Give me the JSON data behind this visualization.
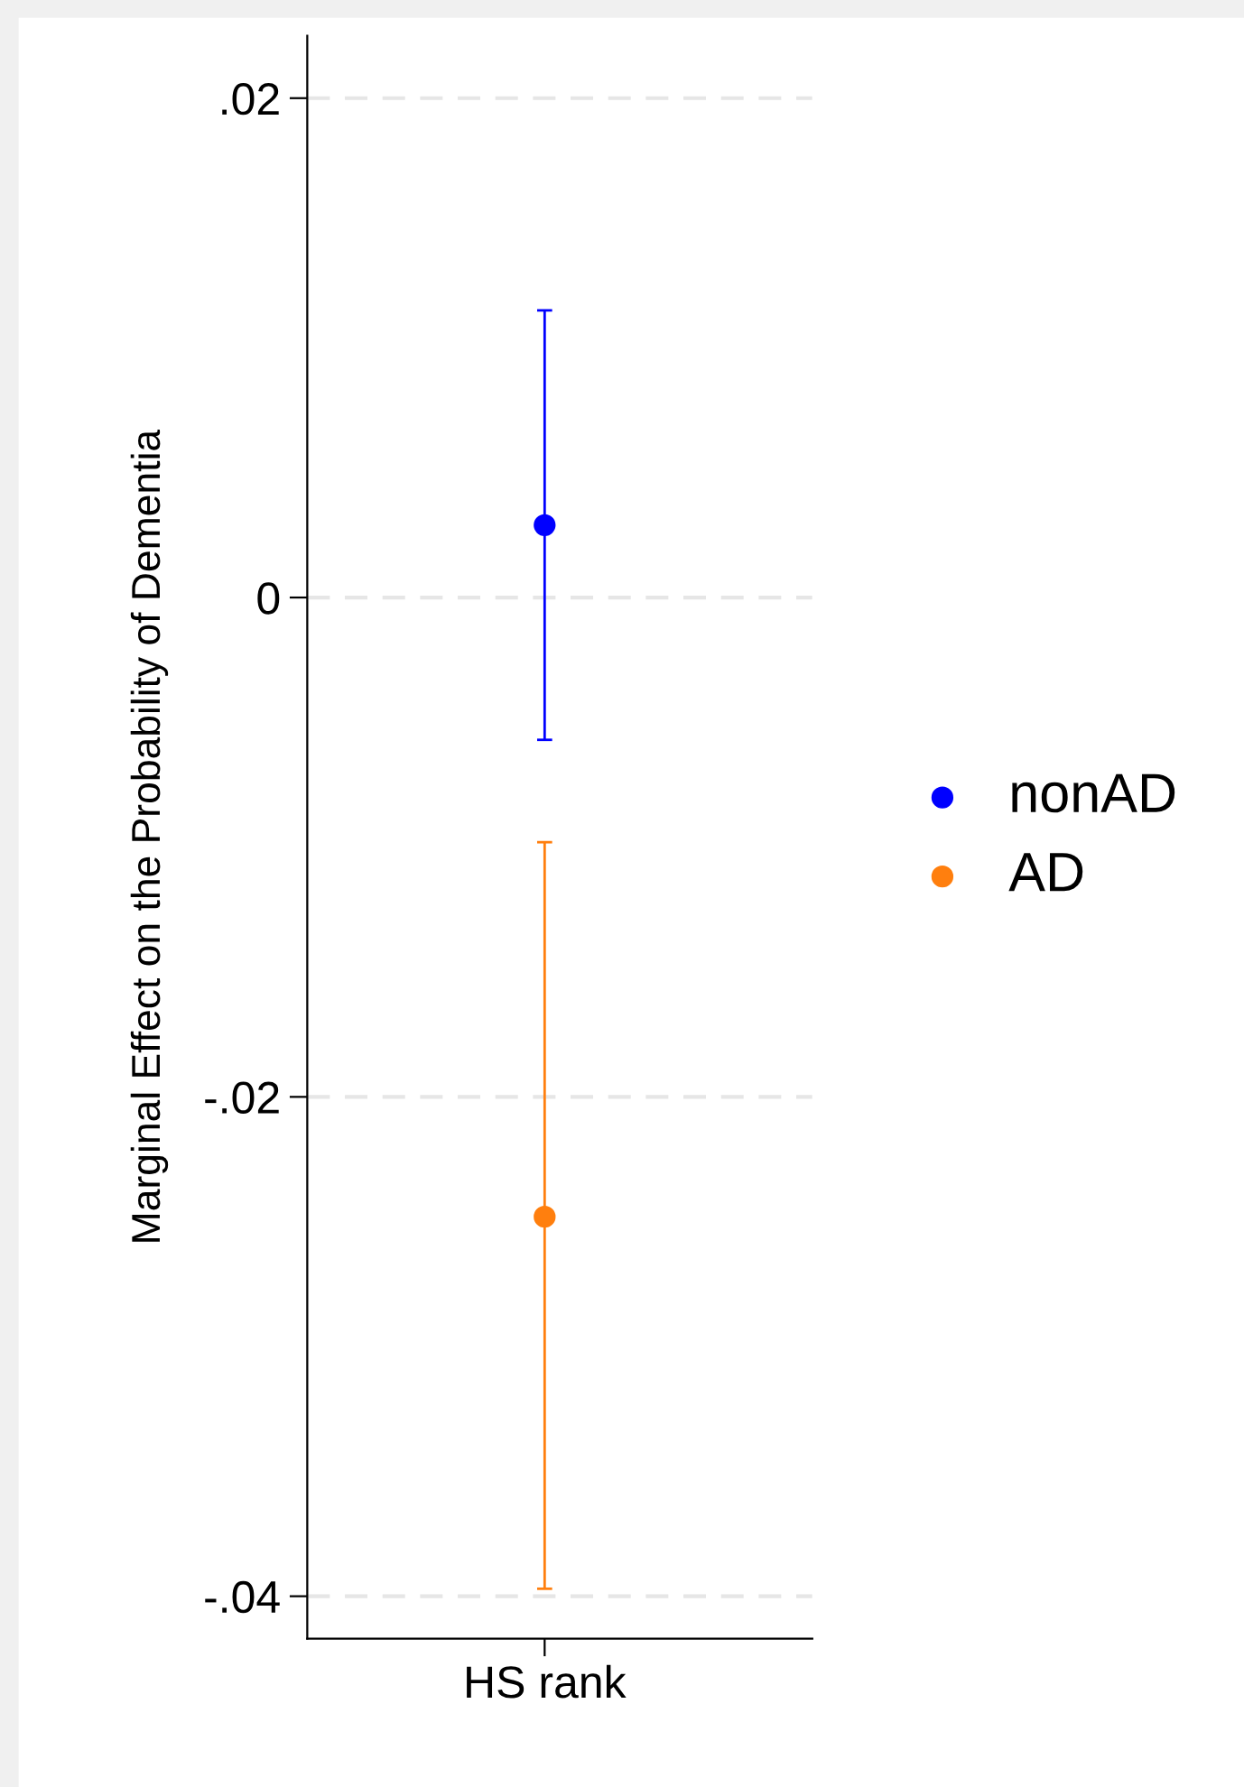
{
  "chart_data": {
    "type": "scatter",
    "ylabel": "Marginal Effect on the Probability of Dementia",
    "categories": [
      "HS rank"
    ],
    "series": [
      {
        "name": "nonAD",
        "color": "#0000ff",
        "values": [
          0.0029
        ],
        "errors": [
          [
            -0.0057,
            0.0115
          ]
        ]
      },
      {
        "name": "AD",
        "color": "#ff7f0e",
        "values": [
          -0.0248
        ],
        "errors": [
          [
            -0.0397,
            -0.0098
          ]
        ]
      }
    ],
    "ylim": [
      -0.0417,
      0.0225
    ],
    "yticks": [
      {
        "value": -0.04,
        "label": "-.04"
      },
      {
        "value": -0.02,
        "label": "-.02"
      },
      0,
      {
        "value": 0.02,
        "label": ".02"
      }
    ],
    "grid": "y",
    "legend": "right",
    "marker": "circle"
  }
}
